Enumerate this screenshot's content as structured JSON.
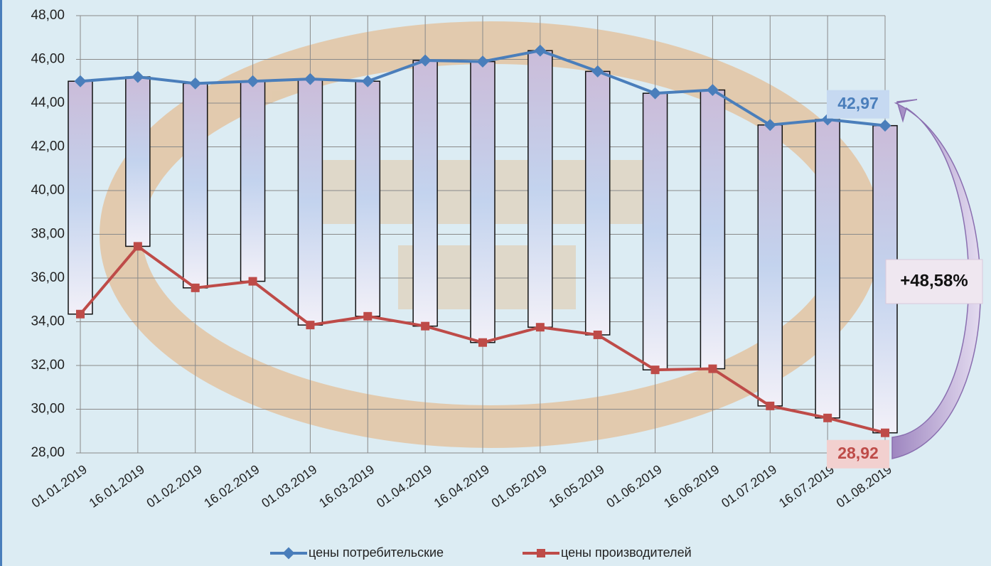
{
  "chart_data": {
    "type": "line",
    "categories": [
      "01.01.2019",
      "16.01.2019",
      "01.02.2019",
      "16.02.2019",
      "01.03.2019",
      "16.03.2019",
      "01.04.2019",
      "16.04.2019",
      "01.05.2019",
      "16.05.2019",
      "01.06.2019",
      "16.06.2019",
      "01.07.2019",
      "16.07.2019",
      "01.08.2019"
    ],
    "series": [
      {
        "name": "цены потребительские",
        "color": "#4a7ebb",
        "values": [
          45.0,
          45.2,
          44.9,
          45.0,
          45.1,
          45.0,
          45.95,
          45.9,
          46.4,
          45.45,
          44.45,
          44.6,
          43.0,
          43.25,
          42.97
        ],
        "value_labels": [
          null,
          null,
          null,
          null,
          null,
          null,
          null,
          null,
          null,
          null,
          null,
          null,
          null,
          null,
          "42,97"
        ]
      },
      {
        "name": "цены производителей",
        "color": "#be4b48",
        "values": [
          34.35,
          37.45,
          35.55,
          35.85,
          33.85,
          34.25,
          33.8,
          33.05,
          33.75,
          33.4,
          31.8,
          31.85,
          30.15,
          29.6,
          28.92
        ],
        "value_labels": [
          null,
          null,
          null,
          null,
          null,
          null,
          null,
          null,
          null,
          null,
          null,
          null,
          null,
          null,
          "28,92"
        ]
      }
    ],
    "ylim": [
      28,
      48
    ],
    "yticks": [
      {
        "value": 28,
        "label": "28,00"
      },
      {
        "value": 30,
        "label": "30,00"
      },
      {
        "value": 32,
        "label": "32,00"
      },
      {
        "value": 34,
        "label": "34,00"
      },
      {
        "value": 36,
        "label": "36,00"
      },
      {
        "value": 38,
        "label": "38,00"
      },
      {
        "value": 40,
        "label": "40,00"
      },
      {
        "value": 42,
        "label": "42,00"
      },
      {
        "value": 44,
        "label": "44,00"
      },
      {
        "value": 46,
        "label": "46,00"
      },
      {
        "value": 48,
        "label": "48,00"
      }
    ],
    "grid": true,
    "high_low_bars": true,
    "annotation": "+48,58%",
    "legend": "bottom"
  }
}
